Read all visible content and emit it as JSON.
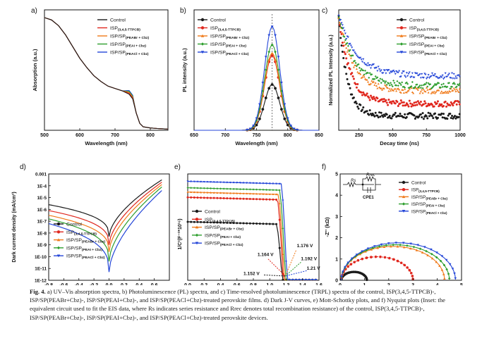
{
  "caption": {
    "label": "Fig. 4.",
    "text": "a) UV–Vis absorption spectra, b) Photoluminescence (PL) spectra, and c) Time-resolved photoluminescence (TRPL) spectra of the control, ISP(3,4,5-TTPCB)-, ISP/SP(PEABr+Cbz)-, ISP/SP(PEAI+Cbz)-, and ISP/SP(PEACl+Cbz)-treated perovskite films. d) Dark J-V curves, e) Mott-Schottky plots, and f) Nyquist plots (Inset: the equivalent circuit used to fit the EIS data, where Rs indicates series resistance and Rrec denotes total recombination resistance) of the control, ISP(3,4,5-TTPCB)-, ISP/SP(PEABr+Cbz)-, ISP/SP(PEAI+Cbz)-, and ISP/SP(PEACl+Cbz)-treated perovskite devices."
  },
  "legend_series": [
    {
      "name": "Control",
      "sub": "",
      "color": "#1a1a1a",
      "marker": "circle"
    },
    {
      "name": "ISP",
      "sub": "(3,4,5-TTPCB)",
      "color": "#e0271e",
      "marker": "circle"
    },
    {
      "name": "ISP/SP",
      "sub": "(PEABr + Cbz)",
      "color": "#f07a1a",
      "marker": "triangle"
    },
    {
      "name": "ISP/SP",
      "sub": "(PEAI + Cbz)",
      "color": "#2e9e2e",
      "marker": "diamond"
    },
    {
      "name": "ISP/SP",
      "sub": "(PEACl + Cbz)",
      "color": "#2446d8",
      "marker": "triangle-down"
    }
  ],
  "chart_data": [
    {
      "panel": "a)",
      "type": "line",
      "xlabel": "Wavelength (nm)",
      "ylabel": "Absorption (a.u.)",
      "xlim": [
        500,
        850
      ],
      "xticks": [
        500,
        600,
        700,
        800
      ],
      "series_note": "all five films nearly overlap",
      "x": [
        500,
        520,
        540,
        560,
        580,
        600,
        620,
        640,
        660,
        680,
        700,
        720,
        740,
        750,
        760,
        770,
        780,
        800,
        820,
        850
      ],
      "y": [
        0.97,
        0.95,
        0.9,
        0.82,
        0.72,
        0.62,
        0.54,
        0.47,
        0.42,
        0.38,
        0.36,
        0.34,
        0.31,
        0.27,
        0.15,
        0.06,
        0.03,
        0.02,
        0.015,
        0.01
      ]
    },
    {
      "panel": "b)",
      "type": "line",
      "xlabel": "Wavelength (nm)",
      "ylabel": "PL intensity (a.u.)",
      "xlim": [
        650,
        850
      ],
      "xticks": [
        650,
        700,
        750,
        800,
        850
      ],
      "peak_nm": 775,
      "series": [
        {
          "name": "Control",
          "peak": 0.38
        },
        {
          "name": "ISP(3,4,5-TTPCB)",
          "peak": 0.62
        },
        {
          "name": "ISP/SP(PEABr + Cbz)",
          "peak": 0.64
        },
        {
          "name": "ISP/SP(PEAI + Cbz)",
          "peak": 0.71
        },
        {
          "name": "ISP/SP(PEACl + Cbz)",
          "peak": 0.86
        }
      ]
    },
    {
      "panel": "c)",
      "type": "scatter",
      "xlabel": "Decay time (ns)",
      "ylabel": "Normalized PL Intensity (a.u.)",
      "xlim": [
        100,
        1000
      ],
      "xticks": [
        250,
        500,
        750,
        1000
      ],
      "series": [
        {
          "name": "Control",
          "tau": 140,
          "floor": 0.12
        },
        {
          "name": "ISP(3,4,5-TTPCB)",
          "tau": 190,
          "floor": 0.22
        },
        {
          "name": "ISP/SP(PEABr + Cbz)",
          "tau": 230,
          "floor": 0.33
        },
        {
          "name": "ISP/SP(PEAI + Cbz)",
          "tau": 260,
          "floor": 0.37
        },
        {
          "name": "ISP/SP(PEACl + Cbz)",
          "tau": 300,
          "floor": 0.45
        }
      ]
    },
    {
      "panel": "d)",
      "type": "line",
      "xlabel": "Voltage (V)",
      "ylabel": "Dark current density (mA/cm²)",
      "xlim": [
        -0.8,
        0.8
      ],
      "ylog": [
        -12,
        -3
      ],
      "xticks": [
        -0.8,
        -0.6,
        -0.4,
        -0.2,
        0.0,
        0.2,
        0.4,
        0.6
      ],
      "ytick_labels": [
        "0.001",
        "1E-4",
        "1E-5",
        "1E-6",
        "1E-7",
        "1E-8",
        "1E-9",
        "1E-10",
        "1E-11",
        "1E-12"
      ],
      "series": [
        {
          "name": "Control",
          "left": -5.6,
          "min": -8.3,
          "right": -3.5
        },
        {
          "name": "ISP(3,4,5-TTPCB)",
          "left": -6.1,
          "min": -9.0,
          "right": -3.7
        },
        {
          "name": "ISP/SP(PEABr + Cbz)",
          "left": -6.5,
          "min": -9.6,
          "right": -3.9
        },
        {
          "name": "ISP/SP(PEAI + Cbz)",
          "left": -6.8,
          "min": -10.4,
          "right": -4.1
        },
        {
          "name": "ISP/SP(PEACl + Cbz)",
          "left": -7.2,
          "min": -11.3,
          "right": -4.4
        }
      ]
    },
    {
      "panel": "e)",
      "type": "line",
      "xlabel": "Voltage (V)",
      "ylabel": "1/C²(F⁻²*10¹⁶)",
      "xlim": [
        0.0,
        1.6
      ],
      "xticks": [
        0.0,
        0.2,
        0.4,
        0.6,
        0.8,
        1.0,
        1.2,
        1.4,
        1.6
      ],
      "series": [
        {
          "name": "Control",
          "plateau": 0.55,
          "vbi": 1.152
        },
        {
          "name": "ISP(3,4,5-TTPCB)",
          "plateau": 0.78,
          "vbi": 1.164
        },
        {
          "name": "ISP/SP(PEABr + Cbz)",
          "plateau": 0.83,
          "vbi": 1.176
        },
        {
          "name": "ISP/SP(PEAI + Cbz)",
          "plateau": 0.87,
          "vbi": 1.192
        },
        {
          "name": "ISP/SP(PEACl + Cbz)",
          "plateau": 0.93,
          "vbi": 1.21
        }
      ],
      "annotations": [
        "1.164 V",
        "1.176 V",
        "1.192 V",
        "1.21 V",
        "1.152 V"
      ]
    },
    {
      "panel": "f)",
      "type": "scatter",
      "xlabel": "Z' (kΩ)",
      "ylabel": "-Z'' (kΩ)",
      "xlim": [
        0,
        5
      ],
      "ylim": [
        0,
        5
      ],
      "xticks": [
        0,
        1,
        2,
        3,
        4,
        5
      ],
      "yticks": [
        0,
        1,
        2,
        3,
        4,
        5
      ],
      "inset": {
        "Rs": "Rs",
        "Rrec": "Rrec",
        "cpe": "CPE1"
      },
      "series": [
        {
          "name": "Control",
          "rs": 0.05,
          "rrec": 1.05
        },
        {
          "name": "ISP(3,4,5-TTPCB)",
          "rs": 0.05,
          "rrec": 2.95
        },
        {
          "name": "ISP/SP(PEABr + Cbz)",
          "rs": 0.05,
          "rrec": 4.25
        },
        {
          "name": "ISP/SP(PEAI + Cbz)",
          "rs": 0.05,
          "rrec": 4.45
        },
        {
          "name": "ISP/SP(PEACl + Cbz)",
          "rs": 0.05,
          "rrec": 4.7
        }
      ]
    }
  ]
}
